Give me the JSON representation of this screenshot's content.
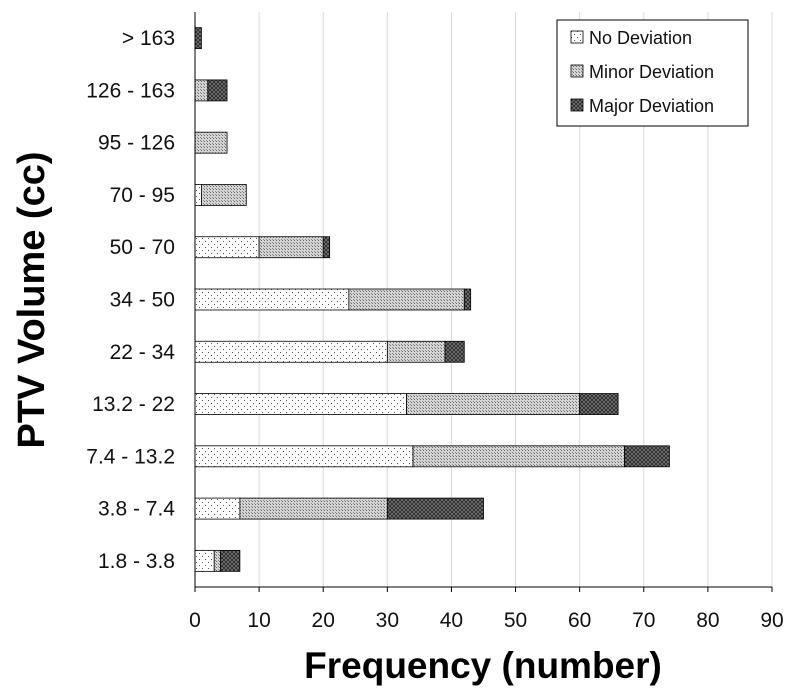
{
  "chart_data": {
    "type": "bar",
    "orientation": "horizontal",
    "stacked": true,
    "title": "",
    "xlabel": "Frequency (number)",
    "ylabel": "PTV Volume (cc)",
    "xlim": [
      0,
      90
    ],
    "xticks": [
      0,
      10,
      20,
      30,
      40,
      50,
      60,
      70,
      80,
      90
    ],
    "grid": "vertical",
    "legend_position": "top-right",
    "categories": [
      "1.8 - 3.8",
      "3.8 - 7.4",
      "7.4 - 13.2",
      "13.2 - 22",
      "22 - 34",
      "34 - 50",
      "50 - 70",
      "70 - 95",
      "95 - 126",
      "126 - 163",
      "> 163"
    ],
    "series": [
      {
        "name": "No Deviation",
        "pattern": "dots-sparse",
        "values": [
          3,
          7,
          34,
          33,
          30,
          24,
          10,
          1,
          0,
          0,
          0
        ]
      },
      {
        "name": "Minor Deviation",
        "pattern": "dots-dense",
        "values": [
          1,
          23,
          33,
          27,
          9,
          18,
          10,
          7,
          5,
          2,
          0
        ]
      },
      {
        "name": "Major Deviation",
        "pattern": "crosshatch",
        "values": [
          3,
          15,
          7,
          6,
          3,
          1,
          1,
          0,
          0,
          3,
          1
        ]
      }
    ]
  }
}
